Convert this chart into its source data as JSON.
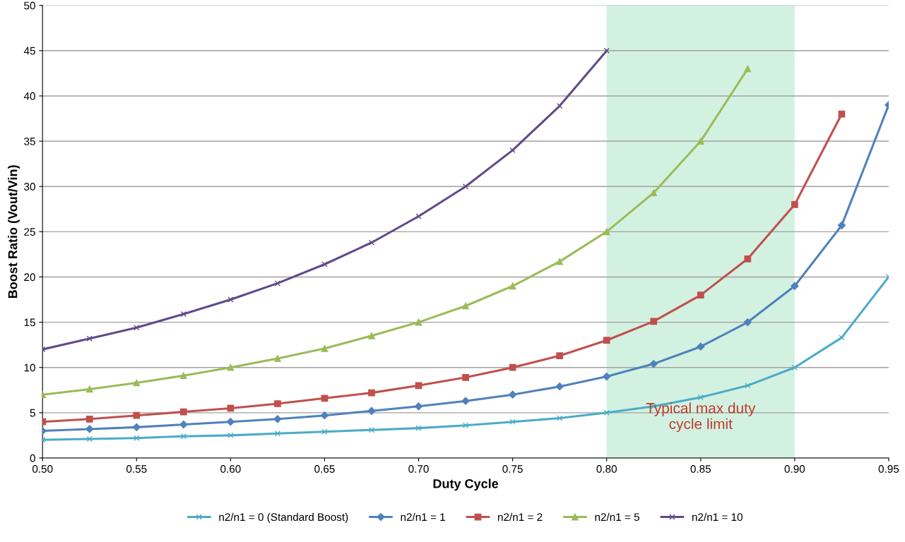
{
  "chart_data": {
    "type": "line",
    "xlabel": "Duty Cycle",
    "ylabel": "Boost Ratio (Vout/Vin)",
    "x": [
      0.5,
      0.525,
      0.55,
      0.575,
      0.6,
      0.625,
      0.65,
      0.675,
      0.7,
      0.725,
      0.75,
      0.775,
      0.8,
      0.825,
      0.85,
      0.875,
      0.9,
      0.925,
      0.95
    ],
    "series": [
      {
        "name": "n2/n1 = 0 (Standard Boost)",
        "color": "#4bacc6",
        "marker": "cross",
        "values": [
          2,
          2.1,
          2.2,
          2.4,
          2.5,
          2.7,
          2.9,
          3.1,
          3.3,
          3.6,
          4,
          4.4,
          5,
          5.7,
          6.7,
          8,
          10,
          13.3,
          20
        ]
      },
      {
        "name": "n2/n1 = 1",
        "color": "#4f81bd",
        "marker": "diamond",
        "values": [
          3,
          3.2,
          3.4,
          3.7,
          4,
          4.3,
          4.7,
          5.2,
          5.7,
          6.3,
          7,
          7.9,
          9,
          10.4,
          12.3,
          15,
          19,
          25.7,
          39
        ]
      },
      {
        "name": "n2/n1 = 2",
        "color": "#c0504d",
        "marker": "square",
        "values": [
          4,
          4.3,
          4.7,
          5.1,
          5.5,
          6,
          6.6,
          7.2,
          8,
          8.9,
          10,
          11.3,
          13,
          15.1,
          18,
          22,
          28,
          38,
          null
        ]
      },
      {
        "name": "n2/n1 = 5",
        "color": "#9bbb59",
        "marker": "triangle",
        "values": [
          7,
          7.6,
          8.3,
          9.1,
          10,
          11,
          12.1,
          13.5,
          15,
          16.8,
          19,
          21.7,
          25,
          29.3,
          35,
          43,
          null,
          null,
          null
        ]
      },
      {
        "name": "n2/n1 = 10",
        "color": "#604a8b",
        "marker": "cross",
        "values": [
          12,
          13.2,
          14.4,
          15.9,
          17.5,
          19.3,
          21.4,
          23.8,
          26.7,
          30,
          34,
          38.9,
          45,
          null,
          null,
          null,
          null,
          null,
          null
        ]
      }
    ],
    "xlim": [
      0.5,
      0.95
    ],
    "xticks": [
      {
        "value": 0.5,
        "label": "0.50"
      },
      0.55,
      {
        "value": 0.6,
        "label": "0.60"
      },
      0.65,
      {
        "value": 0.7,
        "label": "0.70"
      },
      0.75,
      {
        "value": 0.8,
        "label": "0.80"
      },
      0.85,
      {
        "value": 0.9,
        "label": "0.90"
      },
      0.95
    ],
    "ylim": [
      0,
      50
    ],
    "yticks": [
      0,
      5,
      10,
      15,
      20,
      25,
      30,
      35,
      40,
      45,
      50
    ],
    "bands": [
      {
        "axis": "x",
        "from": 0.8,
        "to": 0.9,
        "label": "Typical max duty\ncycle limit",
        "color": "#d3f1e1"
      }
    ],
    "grid": "y",
    "legend": "bottom",
    "line_style": "solid"
  }
}
